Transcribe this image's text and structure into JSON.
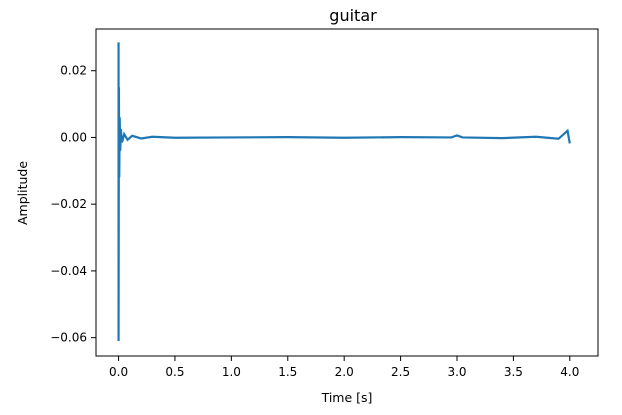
{
  "chart_data": {
    "type": "line",
    "title": "guitar",
    "xlabel": "Time [s]",
    "ylabel": "Amplitude",
    "xlim": [
      -0.2,
      4.25
    ],
    "ylim": [
      -0.0655,
      0.0325
    ],
    "x_ticks": [
      0.0,
      0.5,
      1.0,
      1.5,
      2.0,
      2.5,
      3.0,
      3.5,
      4.0
    ],
    "x_tick_labels": [
      "0.0",
      "0.5",
      "1.0",
      "1.5",
      "2.0",
      "2.5",
      "3.0",
      "3.5",
      "4.0"
    ],
    "y_ticks": [
      0.02,
      0.0,
      -0.02,
      -0.04,
      -0.06
    ],
    "y_tick_labels": [
      "0.02",
      "0.00",
      "−0.02",
      "−0.04",
      "−0.06"
    ],
    "grid": false,
    "color": "#1f77b4",
    "series": [
      {
        "x": [
          0.0,
          0.0,
          0.0,
          0.003,
          0.006,
          0.01,
          0.015,
          0.02,
          0.03,
          0.05,
          0.08,
          0.12,
          0.2,
          0.3,
          0.5,
          1.0,
          1.5,
          2.0,
          2.5,
          2.95,
          3.0,
          3.05,
          3.4,
          3.7,
          3.9,
          3.98,
          4.0
        ],
        "y": [
          0.0,
          0.0285,
          -0.061,
          0.015,
          -0.012,
          0.006,
          -0.004,
          0.0025,
          -0.0015,
          0.001,
          -0.0007,
          0.0005,
          -0.0003,
          0.0002,
          -0.0001,
          0.0,
          0.0001,
          -0.0001,
          0.0001,
          0.0,
          0.0006,
          0.0,
          -0.0002,
          0.0002,
          -0.0004,
          0.002,
          -0.0018
        ]
      }
    ]
  }
}
